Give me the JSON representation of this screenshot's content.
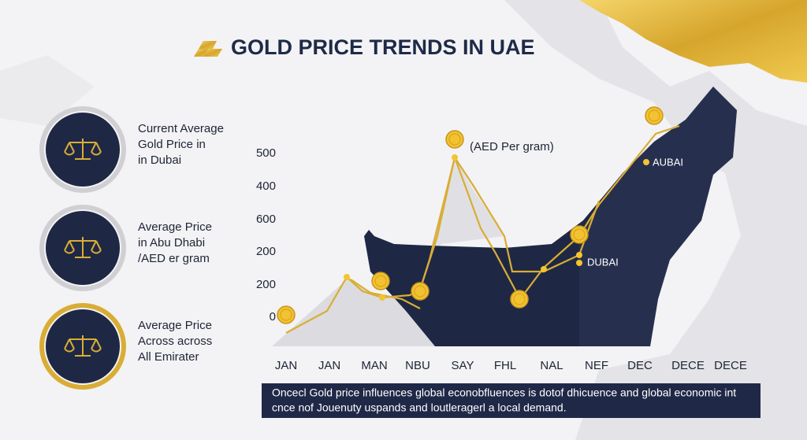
{
  "header": {
    "title": "GOLD PRICE TRENDS IN UAE"
  },
  "cards": [
    {
      "lines": [
        "Current Average",
        "Gold Price in",
        "in Dubai"
      ]
    },
    {
      "lines": [
        "Average Price",
        "in Abu Dhabi",
        "/AED er gram"
      ]
    },
    {
      "lines": [
        "Average Price",
        "Across across",
        "All Emirater"
      ]
    }
  ],
  "chart": {
    "axis_note": "(AED Per gram)",
    "y_labels": [
      "500",
      "400",
      "600",
      "200",
      "200",
      "0"
    ],
    "x_labels": [
      "JAN",
      "JAN",
      "MAN",
      "NBU",
      "SAY",
      "FHL",
      "NAL",
      "NEF",
      "DEC",
      "DECE",
      "DECE"
    ],
    "annotations": [
      "AUBAI",
      "DUBAI"
    ]
  },
  "footer": {
    "lines": [
      "Oncecl Gold price influences global econobfluences is dotof dhicuence and global economic int",
      "cnce nof Jouenuty uspands and loutleragerl a local demand."
    ]
  }
}
